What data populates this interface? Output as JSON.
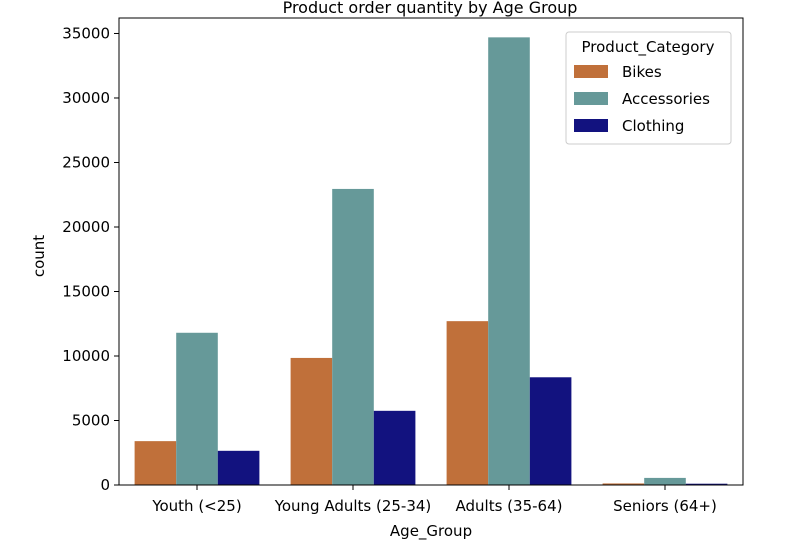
{
  "chart_data": {
    "type": "bar",
    "title": "Product order quantity by Age Group",
    "xlabel": "Age_Group",
    "ylabel": "count",
    "categories": [
      "Youth (<25)",
      "Young Adults (25-34)",
      "Adults (35-64)",
      "Seniors (64+)"
    ],
    "series": [
      {
        "name": "Bikes",
        "color": "#c0703a",
        "values": [
          3400,
          9850,
          12700,
          120
        ]
      },
      {
        "name": "Accessories",
        "color": "#669999",
        "values": [
          11800,
          22950,
          34700,
          550
        ]
      },
      {
        "name": "Clothing",
        "color": "#12127f",
        "values": [
          2650,
          5750,
          8350,
          100
        ]
      }
    ],
    "ylim": [
      0,
      36200
    ],
    "yticks": [
      0,
      5000,
      10000,
      15000,
      20000,
      25000,
      30000,
      35000
    ],
    "legend": {
      "title": "Product_Category",
      "placement": "top-right"
    },
    "grid": false
  }
}
